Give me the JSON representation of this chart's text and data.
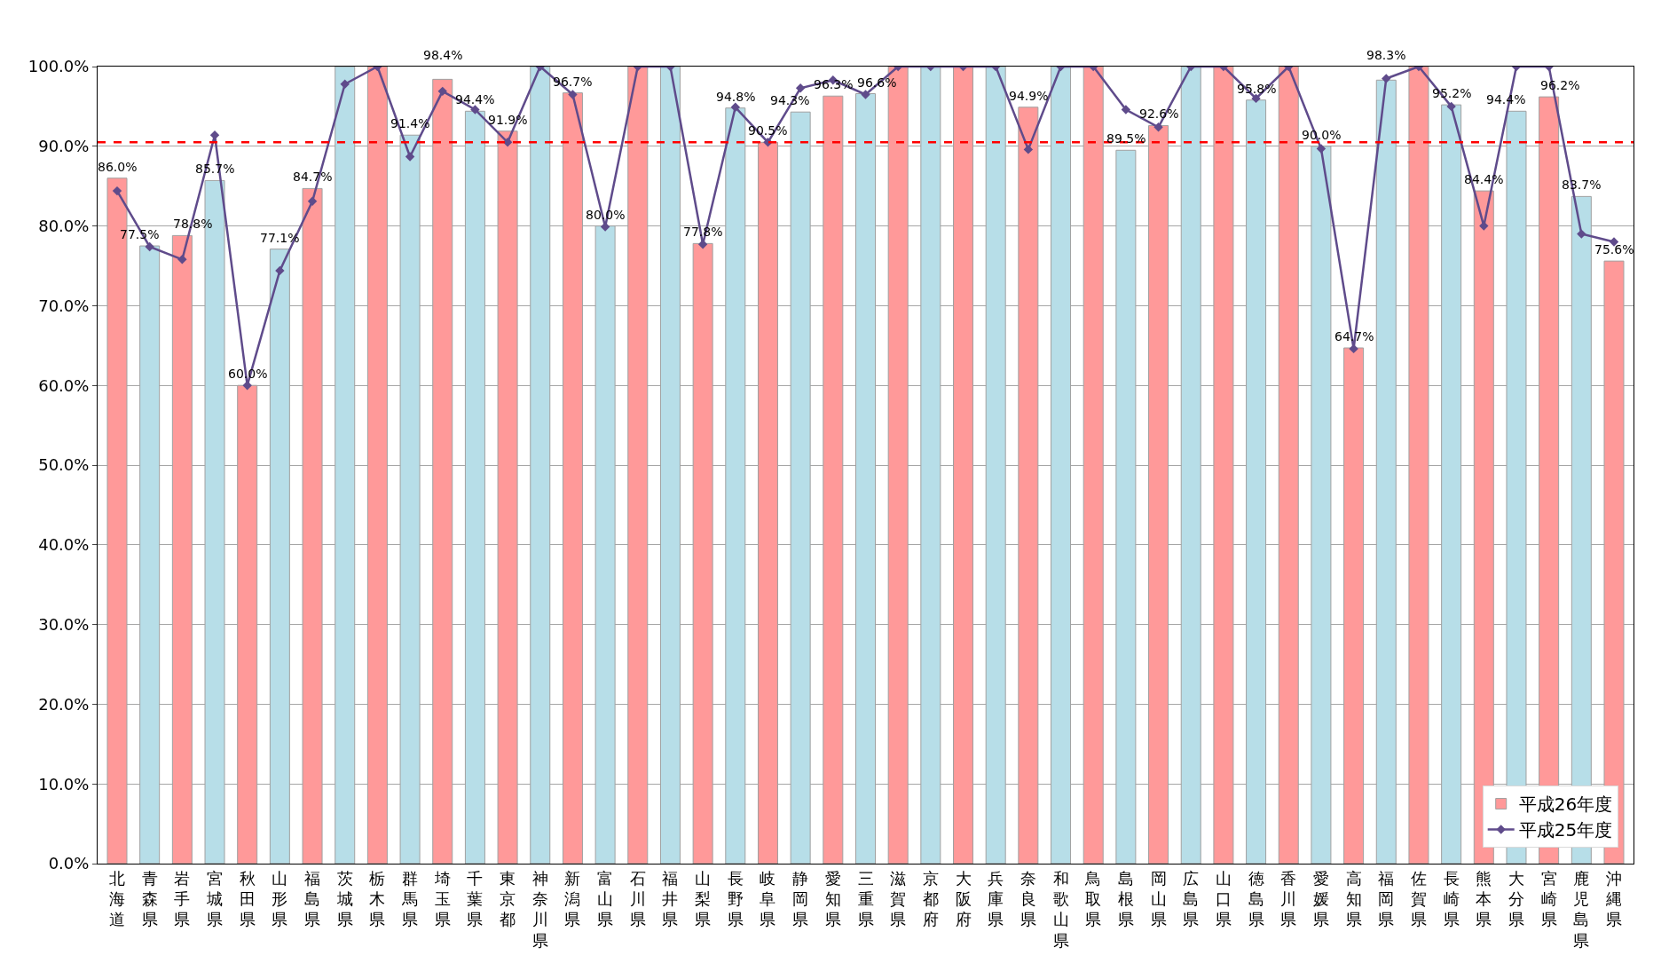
{
  "chart_data": {
    "type": "bar",
    "categories": [
      "北海道",
      "青森県",
      "岩手県",
      "宮城県",
      "秋田県",
      "山形県",
      "福島県",
      "茨城県",
      "栃木県",
      "群馬県",
      "埼玉県",
      "千葉県",
      "東京都",
      "神奈川県",
      "新潟県",
      "富山県",
      "石川県",
      "福井県",
      "山梨県",
      "長野県",
      "岐阜県",
      "静岡県",
      "愛知県",
      "三重県",
      "滋賀県",
      "京都府",
      "大阪府",
      "兵庫県",
      "奈良県",
      "和歌山県",
      "鳥取県",
      "島根県",
      "岡山県",
      "広島県",
      "山口県",
      "徳島県",
      "香川県",
      "愛媛県",
      "高知県",
      "福岡県",
      "佐賀県",
      "長崎県",
      "熊本県",
      "大分県",
      "宮崎県",
      "鹿児島県",
      "沖縄県"
    ],
    "series": [
      {
        "name": "平成26年度",
        "colors": [
          "#ff9999",
          "#b7dee8",
          "#ff9999",
          "#b7dee8",
          "#ff9999",
          "#b7dee8",
          "#ff9999",
          "#b7dee8",
          "#ff9999",
          "#b7dee8",
          "#ff9999",
          "#b7dee8",
          "#ff9999",
          "#b7dee8",
          "#ff9999",
          "#b7dee8",
          "#ff9999",
          "#b7dee8",
          "#ff9999",
          "#b7dee8",
          "#ff9999",
          "#b7dee8",
          "#ff9999",
          "#b7dee8",
          "#ff9999",
          "#b7dee8",
          "#ff9999",
          "#b7dee8",
          "#ff9999",
          "#b7dee8",
          "#ff9999",
          "#b7dee8",
          "#ff9999",
          "#b7dee8",
          "#ff9999",
          "#b7dee8",
          "#ff9999",
          "#b7dee8",
          "#ff9999",
          "#b7dee8",
          "#ff9999",
          "#b7dee8",
          "#ff9999",
          "#b7dee8",
          "#ff9999",
          "#b7dee8",
          "#ff9999"
        ],
        "values": [
          86.0,
          77.5,
          78.8,
          85.7,
          60.0,
          77.1,
          84.7,
          100,
          100,
          91.4,
          98.4,
          94.4,
          91.9,
          100,
          96.7,
          80.0,
          100,
          100,
          77.8,
          94.8,
          90.5,
          94.3,
          96.3,
          96.6,
          100,
          100,
          100,
          100,
          94.9,
          100,
          100,
          89.5,
          92.6,
          100,
          100,
          95.8,
          100,
          90.0,
          64.7,
          98.3,
          100,
          95.2,
          84.4,
          94.4,
          96.2,
          83.7,
          75.6
        ],
        "value_labels": [
          "86.0%",
          "77.5%",
          "78.8%",
          "85.7%",
          "60.0%",
          "77.1%",
          "84.7%",
          null,
          null,
          "91.4%",
          "98.4%",
          "94.4%",
          "91.9%",
          null,
          "96.7%",
          "80.0%",
          null,
          null,
          "77.8%",
          "94.8%",
          "90.5%",
          "94.3%",
          "96.3%",
          "96.6%",
          null,
          null,
          null,
          null,
          "94.9%",
          null,
          null,
          "89.5%",
          "92.6%",
          null,
          null,
          "95.8%",
          null,
          "90.0%",
          "64.7%",
          "98.3%",
          null,
          "95.2%",
          "84.4%",
          "94.4%",
          "96.2%",
          "83.7%",
          "75.6%"
        ]
      },
      {
        "name": "平成25年度",
        "type": "line",
        "color": "#5f4b8b",
        "marker": "diamond",
        "values": [
          84.4,
          77.4,
          75.8,
          91.4,
          60.0,
          74.4,
          83.1,
          97.8,
          100,
          88.7,
          96.9,
          94.6,
          90.5,
          100,
          96.5,
          79.9,
          100,
          100,
          77.7,
          94.9,
          90.5,
          97.3,
          98.3,
          96.5,
          100,
          100,
          100,
          100,
          89.6,
          100,
          100,
          94.6,
          92.4,
          100,
          100,
          96.0,
          100,
          89.7,
          64.6,
          98.5,
          100,
          95.0,
          80.0,
          100,
          100,
          79.0,
          78.0
        ]
      }
    ],
    "ylim": [
      0,
      100
    ],
    "yticks": [
      {
        "value": 0,
        "label": "0.0%"
      },
      {
        "value": 10,
        "label": "10.0%"
      },
      {
        "value": 20,
        "label": "20.0%"
      },
      {
        "value": 30,
        "label": "30.0%"
      },
      {
        "value": 40,
        "label": "40.0%"
      },
      {
        "value": 50,
        "label": "50.0%"
      },
      {
        "value": 60,
        "label": "60.0%"
      },
      {
        "value": 70,
        "label": "70.0%"
      },
      {
        "value": 80,
        "label": "80.0%"
      },
      {
        "value": 90,
        "label": "90.0%"
      },
      {
        "value": 100,
        "label": "100.0%"
      }
    ],
    "ref_lines": [
      {
        "axis": "y",
        "value": 90.5,
        "color": "#ff0000",
        "line_style": "dashed"
      }
    ],
    "grid": "y",
    "legend": "bottom right"
  }
}
